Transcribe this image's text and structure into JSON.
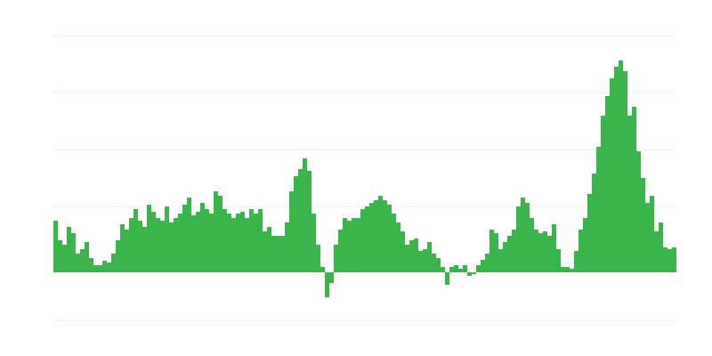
{
  "chart_data": {
    "type": "bar",
    "color": "#39b54a",
    "grid": true,
    "ylim": [
      -54,
      266
    ],
    "yticks": [
      -54,
      10,
      74,
      138,
      202,
      266
    ],
    "values": [
      58,
      36,
      31,
      51,
      44,
      21,
      26,
      34,
      16,
      8,
      8,
      13,
      11,
      21,
      36,
      54,
      48,
      61,
      71,
      58,
      51,
      76,
      68,
      61,
      58,
      74,
      56,
      61,
      66,
      76,
      84,
      64,
      68,
      78,
      71,
      66,
      91,
      86,
      71,
      66,
      61,
      66,
      68,
      61,
      71,
      66,
      71,
      46,
      51,
      41,
      41,
      41,
      56,
      91,
      108,
      116,
      128,
      114,
      66,
      31,
      6,
      -28,
      -12,
      31,
      48,
      61,
      58,
      61,
      61,
      71,
      74,
      78,
      81,
      86,
      81,
      76,
      66,
      56,
      46,
      31,
      36,
      38,
      24,
      26,
      34,
      21,
      16,
      6,
      -14,
      6,
      8,
      4,
      8,
      -4,
      -2,
      8,
      14,
      21,
      48,
      44,
      26,
      34,
      41,
      48,
      74,
      84,
      78,
      61,
      48,
      44,
      46,
      41,
      54,
      26,
      6,
      6,
      4,
      24,
      48,
      61,
      88,
      111,
      141,
      176,
      198,
      218,
      231,
      238,
      226,
      176,
      186,
      136,
      106,
      78,
      86,
      46,
      56,
      28,
      26,
      28
    ]
  }
}
